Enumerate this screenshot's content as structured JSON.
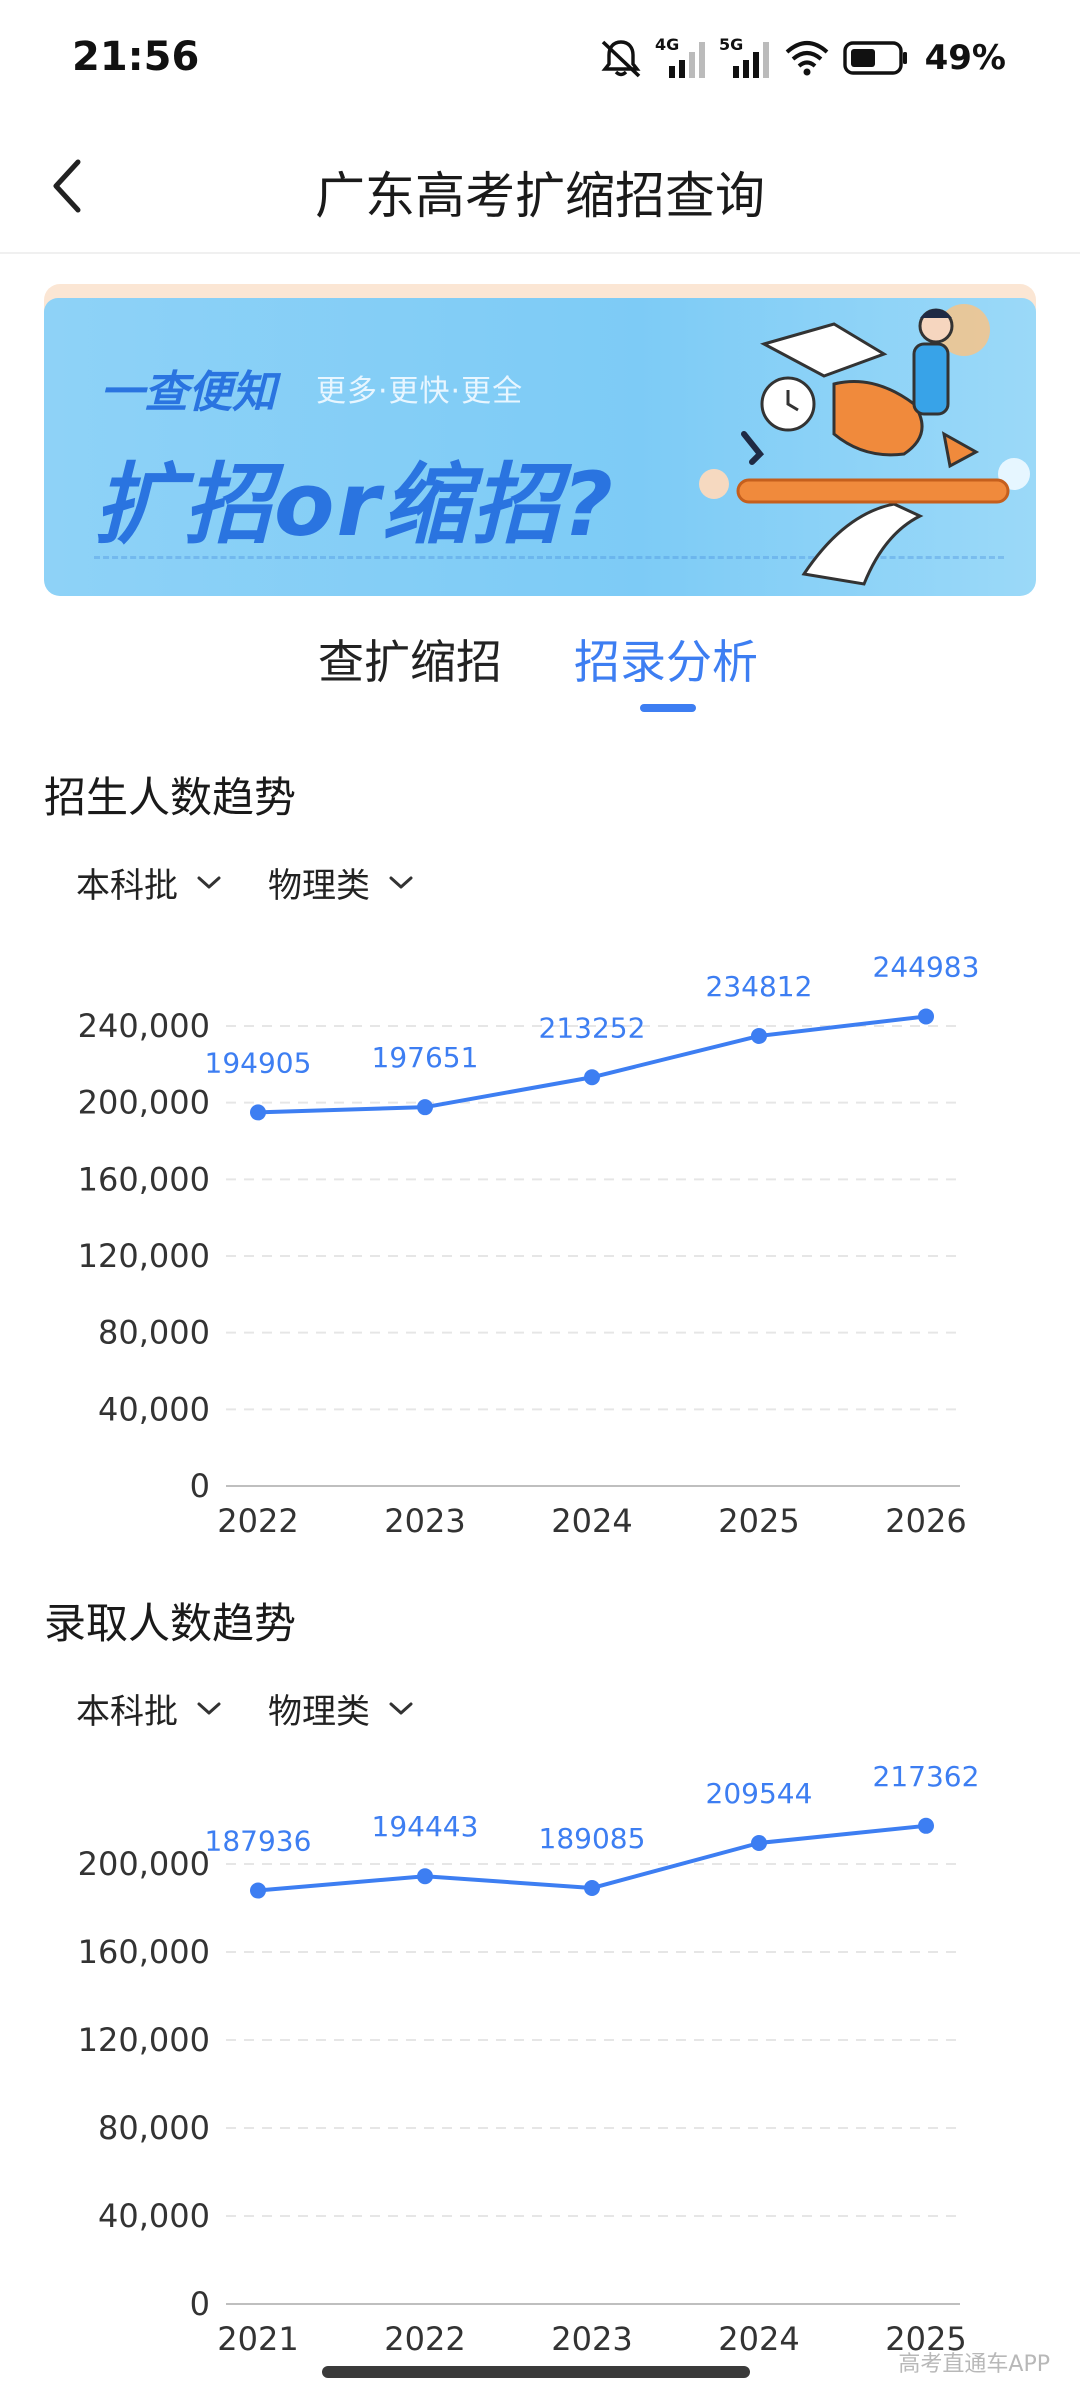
{
  "status_bar": {
    "time": "21:56",
    "network_1": "4G",
    "network_2": "5G",
    "battery": "49%",
    "icons": [
      "mute-icon",
      "signal-4g-icon",
      "signal-5g-icon",
      "wifi-icon",
      "battery-icon"
    ]
  },
  "header": {
    "title": "广东高考扩缩招查询",
    "back_icon": "chevron-left-icon"
  },
  "banner": {
    "slogan": "一查便知",
    "sub": "更多·更快·更全",
    "main": "扩招or缩招?"
  },
  "tabs": [
    {
      "label": "查扩缩招",
      "active": false
    },
    {
      "label": "招录分析",
      "active": true
    }
  ],
  "enroll_section": {
    "title": "招生人数趋势",
    "filter_1": "本科批",
    "filter_2": "物理类"
  },
  "admit_section": {
    "title": "录取人数趋势",
    "filter_1": "本科批",
    "filter_2": "物理类"
  },
  "chart_data": [
    {
      "type": "line",
      "categories": [
        "2022",
        "2023",
        "2024",
        "2025",
        "2026"
      ],
      "series": [
        {
          "values": [
            194905,
            197651,
            213252,
            234812,
            244983
          ]
        }
      ],
      "y_ticks": [
        "0",
        "40,000",
        "80,000",
        "120,000",
        "160,000",
        "200,000",
        "240,000"
      ],
      "ylim": [
        0,
        240000
      ],
      "color": "#3d7ef2",
      "grid": "dashed-horizontal",
      "legend": "none"
    },
    {
      "type": "line",
      "categories": [
        "2021",
        "2022",
        "2023",
        "2024",
        "2025"
      ],
      "series": [
        {
          "values": [
            187936,
            194443,
            189085,
            209544,
            217362
          ]
        }
      ],
      "y_ticks": [
        "0",
        "40,000",
        "80,000",
        "120,000",
        "160,000",
        "200,000"
      ],
      "ylim": [
        0,
        200000
      ],
      "color": "#3d7ef2",
      "grid": "dashed-horizontal",
      "legend": "none"
    }
  ],
  "watermark": "高考直通车APP"
}
